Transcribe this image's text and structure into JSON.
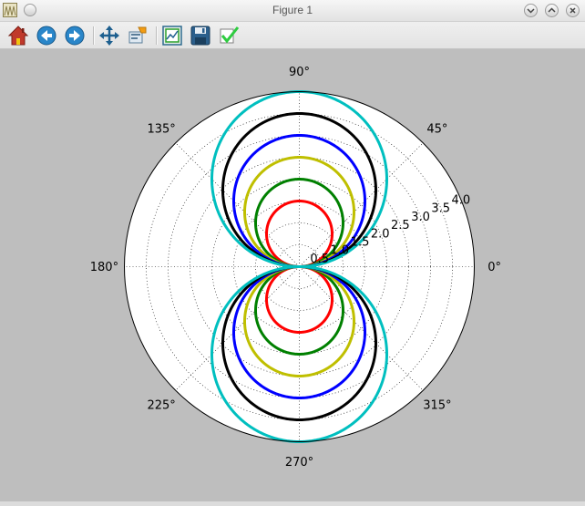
{
  "window": {
    "title": "Figure 1"
  },
  "toolbar": {
    "buttons": [
      {
        "name": "home-icon",
        "tooltip": "Reset original view"
      },
      {
        "name": "back-icon",
        "tooltip": "Back to previous view"
      },
      {
        "name": "forward-icon",
        "tooltip": "Forward to next view"
      },
      {
        "name": "pan-icon",
        "tooltip": "Pan axes"
      },
      {
        "name": "zoom-icon",
        "tooltip": "Zoom to rectangle"
      },
      {
        "name": "subplots-icon",
        "tooltip": "Configure subplots"
      },
      {
        "name": "save-icon",
        "tooltip": "Save the figure"
      },
      {
        "name": "edit-axis-icon",
        "tooltip": "Edit axis"
      }
    ]
  },
  "chart_data": {
    "type": "line",
    "projection": "polar",
    "theta_labels": [
      "0°",
      "45°",
      "90°",
      "135°",
      "180°",
      "225°",
      "270°",
      "315°"
    ],
    "theta_deg": [
      0,
      45,
      90,
      135,
      180,
      225,
      270,
      315
    ],
    "r_ticks": [
      "0.5",
      "1.0",
      "1.5",
      "2.0",
      "2.5",
      "3.0",
      "3.5",
      "4.0"
    ],
    "r_tick_values": [
      0.5,
      1.0,
      1.5,
      2.0,
      2.5,
      3.0,
      3.5,
      4.0
    ],
    "r_tick_angle_deg": 22.5,
    "rlim": [
      0,
      4.0
    ],
    "grid": true,
    "series": [
      {
        "r_function": "a*|sin(theta)|",
        "amplitude": 1.5,
        "color": "#ff0000"
      },
      {
        "r_function": "a*|sin(theta)|",
        "amplitude": 2.0,
        "color": "#008000"
      },
      {
        "r_function": "a*|sin(theta)|",
        "amplitude": 2.5,
        "color": "#bfbf00"
      },
      {
        "r_function": "a*|sin(theta)|",
        "amplitude": 3.0,
        "color": "#0000ff"
      },
      {
        "r_function": "a*|sin(theta)|",
        "amplitude": 3.5,
        "color": "#000000"
      },
      {
        "r_function": "a*|sin(theta)|",
        "amplitude": 4.0,
        "color": "#00bfbf"
      }
    ]
  }
}
